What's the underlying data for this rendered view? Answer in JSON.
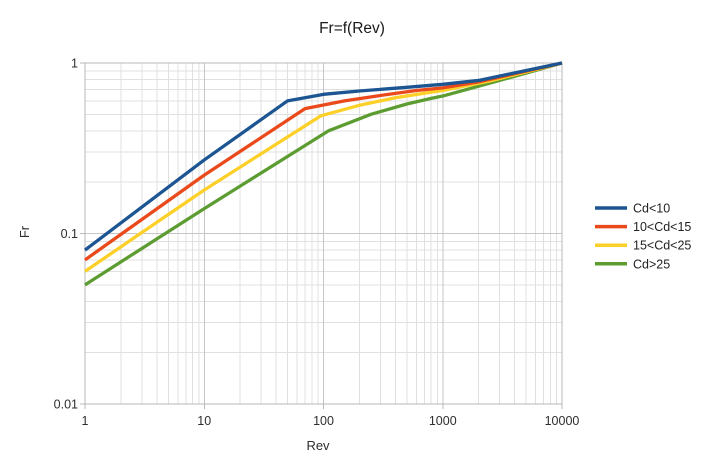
{
  "page": {
    "background": "#ffffff"
  },
  "chart_data": {
    "type": "line",
    "title": "Fr=f(Rev)",
    "xlabel": "Rev",
    "ylabel": "Fr",
    "x_scale": "log",
    "y_scale": "log",
    "xlim": [
      1,
      10000
    ],
    "ylim": [
      0.01,
      1
    ],
    "x_tick_values": [
      1,
      10,
      100,
      1000,
      10000
    ],
    "x_tick_labels": [
      "1",
      "10",
      "100",
      "1000",
      "10000"
    ],
    "y_tick_values": [
      1,
      0.1,
      0.01
    ],
    "y_tick_labels": [
      "1",
      "0.1",
      "0.01"
    ],
    "grid": {
      "major": true,
      "minor": true,
      "major_color": "#c6c6c6",
      "minor_color": "#e0e0e0",
      "frame_color": "#b9b9b9"
    },
    "legend_position": "right",
    "series": [
      {
        "name": "Cd<10",
        "color": "#1C5592",
        "points": [
          [
            1,
            0.08
          ],
          [
            10,
            0.27
          ],
          [
            50,
            0.6
          ],
          [
            100,
            0.655
          ],
          [
            200,
            0.685
          ],
          [
            500,
            0.72
          ],
          [
            1000,
            0.75
          ],
          [
            2000,
            0.79
          ],
          [
            10000,
            1.0
          ]
        ]
      },
      {
        "name": "10<Cd<15",
        "color": "#EA4A1B",
        "points": [
          [
            1,
            0.07
          ],
          [
            10,
            0.22
          ],
          [
            70,
            0.54
          ],
          [
            150,
            0.6
          ],
          [
            300,
            0.645
          ],
          [
            600,
            0.69
          ],
          [
            1000,
            0.715
          ],
          [
            2000,
            0.775
          ],
          [
            10000,
            1.0
          ]
        ]
      },
      {
        "name": "15<Cd<25",
        "color": "#FCD028",
        "points": [
          [
            1,
            0.06
          ],
          [
            10,
            0.18
          ],
          [
            95,
            0.49
          ],
          [
            200,
            0.565
          ],
          [
            400,
            0.625
          ],
          [
            700,
            0.665
          ],
          [
            1000,
            0.69
          ],
          [
            2500,
            0.785
          ],
          [
            10000,
            1.0
          ]
        ]
      },
      {
        "name": "Cd>25",
        "color": "#5C9C31",
        "points": [
          [
            1,
            0.05
          ],
          [
            10,
            0.14
          ],
          [
            110,
            0.4
          ],
          [
            250,
            0.5
          ],
          [
            500,
            0.575
          ],
          [
            800,
            0.62
          ],
          [
            1000,
            0.64
          ],
          [
            3000,
            0.79
          ],
          [
            10000,
            1.0
          ]
        ]
      }
    ]
  }
}
